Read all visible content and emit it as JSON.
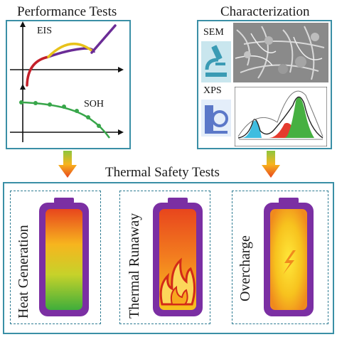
{
  "headings": {
    "performance": "Performance Tests",
    "characterization": "Characterization",
    "thermal": "Thermal Safety Tests"
  },
  "performance": {
    "eis_label": "EIS",
    "soh_label": "SOH"
  },
  "characterization": {
    "sem_label": "SEM",
    "xps_label": "XPS"
  },
  "batteries": [
    {
      "label": "Heat Generation"
    },
    {
      "label": "Thermal Runaway"
    },
    {
      "label": "Overcharge"
    }
  ],
  "colors": {
    "frame": "#3a8fa6",
    "battery_shell": "#7b2fa3",
    "eis_red": "#c4202a",
    "eis_yellow": "#e8c21b",
    "eis_purple": "#6a2c96",
    "soh_green": "#38a64a"
  }
}
